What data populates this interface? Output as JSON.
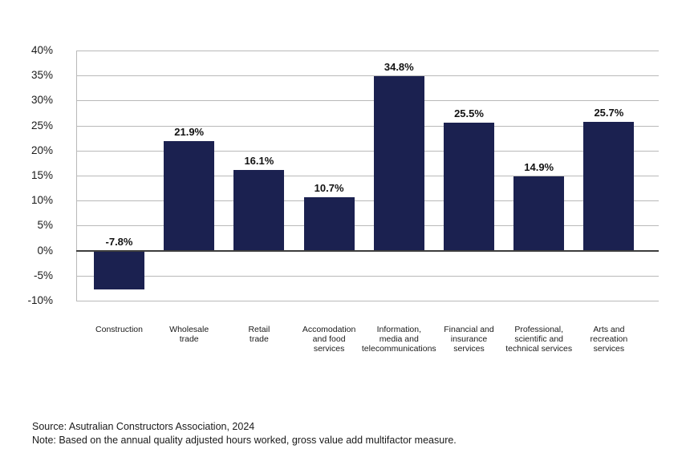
{
  "chart_data": {
    "type": "bar",
    "title": "",
    "xlabel": "",
    "ylabel": "",
    "categories": [
      "Construction",
      "Wholesale\ntrade",
      "Retail\ntrade",
      "Accomodation\nand food\nservices",
      "Information,\nmedia and\ntelecommunications",
      "Financial and\ninsurance\nservices",
      "Professional,\nscientific and\ntechnical services",
      "Arts and\nrecreation\nservices"
    ],
    "values": [
      -7.8,
      21.9,
      16.1,
      10.7,
      34.8,
      25.5,
      14.9,
      25.7
    ],
    "value_labels": [
      "-7.8%",
      "21.9%",
      "16.1%",
      "10.7%",
      "34.8%",
      "25.5%",
      "14.9%",
      "25.7%"
    ],
    "y_ticks": [
      "40%",
      "35%",
      "30%",
      "25%",
      "20%",
      "15%",
      "10%",
      "5%",
      "0%",
      "-5%",
      "-10%"
    ],
    "y_tick_values": [
      40,
      35,
      30,
      25,
      20,
      15,
      10,
      5,
      0,
      -5,
      -10
    ],
    "ylim": [
      -10,
      40
    ],
    "grid": true,
    "legend": "none",
    "bar_color": "#1b2150",
    "gridline_color": "#b9b9b9",
    "zero_line_color": "#3d3d3d"
  },
  "footer": {
    "source": "Source: Asutralian Constructors Association, 2024",
    "note": "Note: Based on the annual quality adjusted hours worked, gross value add multifactor measure."
  }
}
